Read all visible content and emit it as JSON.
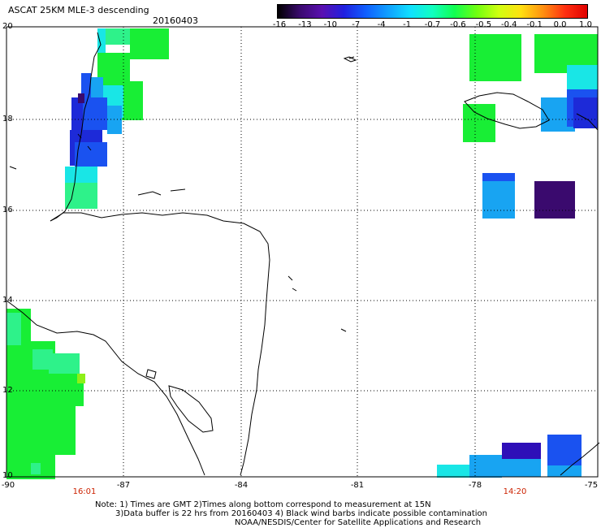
{
  "header": {
    "title": "ASCAT 25KM MLE-3 descending",
    "date": "20160403"
  },
  "colorbar": {
    "labels": [
      "-16",
      "-13",
      "-10",
      "-7",
      "-4",
      "-1",
      "-0.7",
      "-0.6",
      "-0.5",
      "-0.4",
      "-0.1",
      "0.0",
      "1.0"
    ],
    "colors": [
      "#000000",
      "#3a0a6e",
      "#5a10b0",
      "#2020e0",
      "#1060ff",
      "#10a0ff",
      "#10e0ff",
      "#10ffc0",
      "#10ff50",
      "#70ff10",
      "#d0ff10",
      "#ffe010",
      "#ff9010",
      "#ff3010",
      "#e00000"
    ]
  },
  "map": {
    "lat_labels": [
      "20",
      "18",
      "16",
      "14",
      "12",
      "10"
    ],
    "lon_labels": [
      "-90",
      "-87",
      "-84",
      "-81",
      "-78",
      "-75"
    ],
    "times": [
      "16:01",
      "14:20"
    ],
    "swath_colors": {
      "green": "#18ee35",
      "light_green": "#2ef28a",
      "cyan": "#19e6e6",
      "light_blue": "#18a4f2",
      "blue": "#1a52f0",
      "dark_blue": "#1d2ad8",
      "navy": "#2e0fb8",
      "purple": "#3a0a6e",
      "lime": "#8ef018"
    }
  },
  "notes": {
    "line1": "Note: 1) Times are GMT 2)Times along bottom correspond to measurement at 15N",
    "line2": "3)Data buffer is 22 hrs from 20160403 4) Black wind barbs indicate possible contamination",
    "line3": "NOAA/NESDIS/Center for Satellite Applications and Research"
  }
}
